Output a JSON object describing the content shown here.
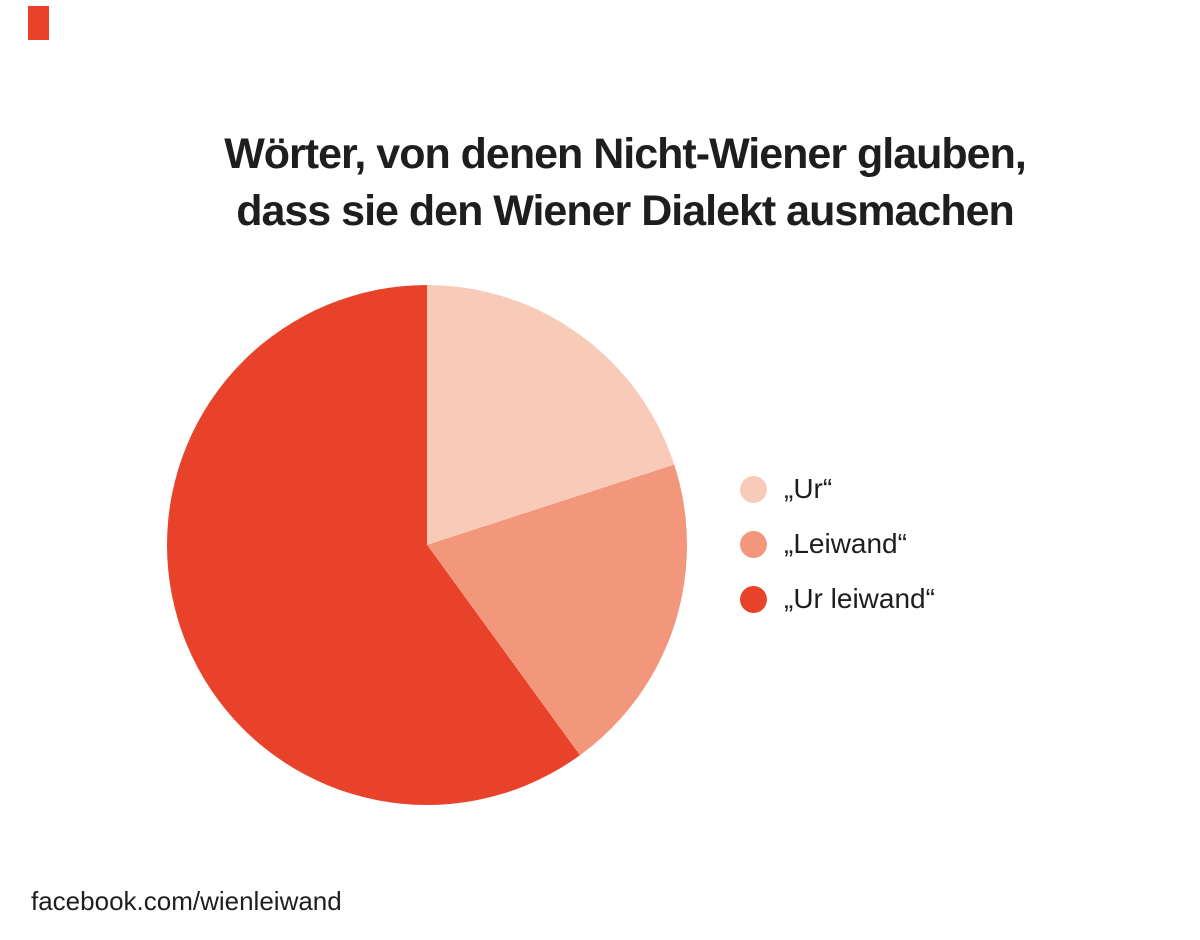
{
  "page": {
    "background": "#ffffff"
  },
  "accent": {
    "color": "#e8432a"
  },
  "title": {
    "line1": "Wörter, von denen Nicht-Wiener glauben,",
    "line2": "dass sie den Wiener Dialekt ausmachen",
    "color": "#1e1e1e"
  },
  "chart_data": {
    "type": "pie",
    "title": "Wörter, von denen Nicht-Wiener glauben, dass sie den Wiener Dialekt ausmachen",
    "labels": [
      "„Ur“",
      "„Leiwand“",
      "„Ur leiwand“"
    ],
    "values": [
      20,
      20,
      60
    ],
    "angles_deg": [
      [
        0,
        72
      ],
      [
        72,
        144
      ],
      [
        144,
        360
      ]
    ],
    "colors": [
      "#f8cbb9",
      "#f3977c",
      "#e8432a"
    ],
    "start_angle": "top (12 o'clock), clockwise",
    "legend_position": "right",
    "data_labels": false
  },
  "legend": {
    "items": [
      {
        "label": "„Ur“",
        "color": "#f8cbb9"
      },
      {
        "label": "„Leiwand“",
        "color": "#f3977c"
      },
      {
        "label": "„Ur leiwand“",
        "color": "#e8432a"
      }
    ]
  },
  "footer": {
    "text": "facebook.com/wienleiwand"
  }
}
